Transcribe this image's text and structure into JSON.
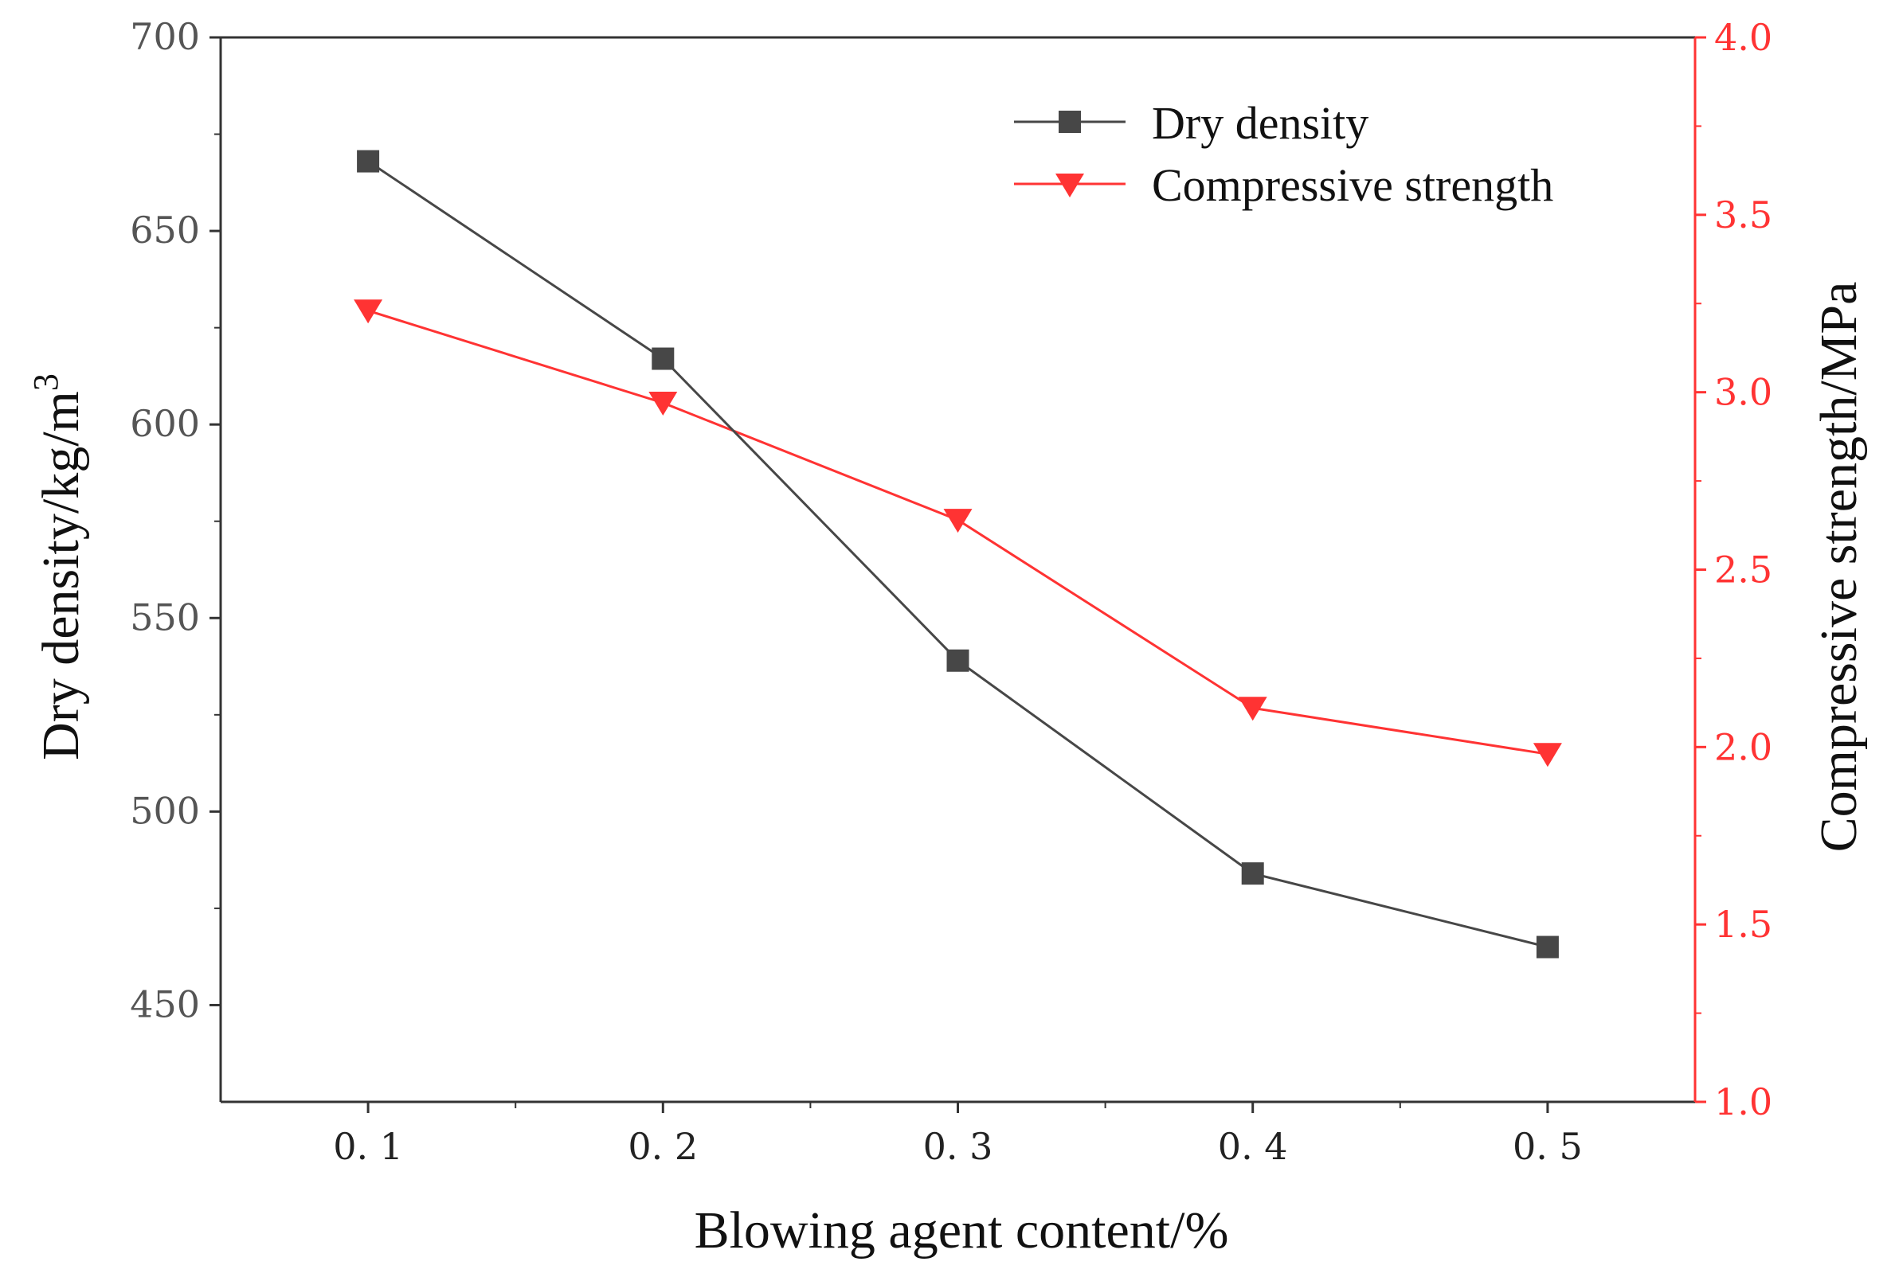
{
  "chart_data": {
    "type": "line",
    "x": [
      0.1,
      0.2,
      0.3,
      0.4,
      0.5
    ],
    "x_tick_labels": [
      "0. 1",
      "0. 2",
      "0. 3",
      "0. 4",
      "0. 5"
    ],
    "xlabel": "Blowing agent content/%",
    "xlim": [
      0.05,
      0.55
    ],
    "left_axis": {
      "label": "Dry density/kg/m",
      "label_superscript": "3",
      "ylim": [
        425,
        700
      ],
      "ticks": [
        450,
        500,
        550,
        600,
        650,
        700
      ],
      "tick_labels": [
        "450",
        "500",
        "550",
        "600",
        "650",
        "700"
      ]
    },
    "right_axis": {
      "label": "Compressive strength/MPa",
      "ylim": [
        1.0,
        4.0
      ],
      "ticks": [
        1.0,
        1.5,
        2.0,
        2.5,
        3.0,
        3.5,
        4.0
      ],
      "tick_labels": [
        "1.0",
        "1.5",
        "2.0",
        "2.5",
        "3.0",
        "3.5",
        "4.0"
      ],
      "color": "#ff3333"
    },
    "series": [
      {
        "name": "Dry density",
        "axis": "left",
        "marker": "square",
        "color": "#474747",
        "values": [
          668,
          617,
          539,
          484,
          465
        ]
      },
      {
        "name": "Compressive strength",
        "axis": "right",
        "marker": "triangle-down",
        "color": "#ff3333",
        "values": [
          3.23,
          2.97,
          2.64,
          2.11,
          1.98
        ]
      }
    ],
    "legend": {
      "position": "top-right"
    }
  }
}
